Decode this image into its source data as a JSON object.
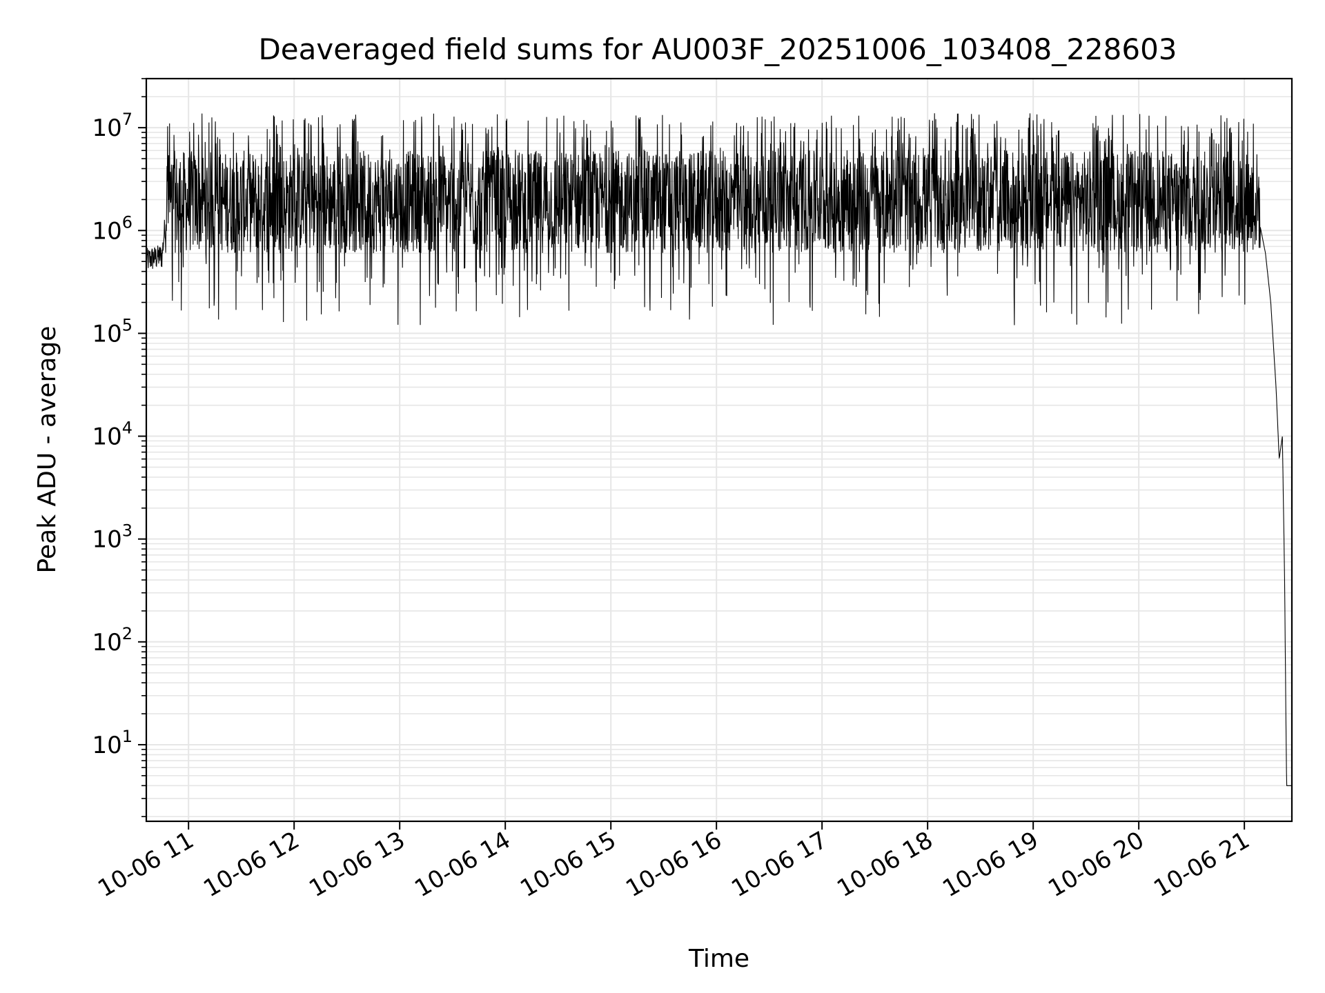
{
  "chart_data": {
    "type": "line",
    "title": "Deaveraged field sums for AU003F_20251006_103408_228603",
    "xlabel": "Time",
    "ylabel": "Peak ADU - average",
    "yscale": "log",
    "ylim": [
      1.8,
      30000000
    ],
    "xlim_hours": [
      10.6,
      21.45
    ],
    "grid": true,
    "grid_which": "both",
    "line_color": "#000000",
    "grid_color": "#e6e6e6",
    "x_ticks": [
      {
        "hour": 11,
        "label": "10-06 11"
      },
      {
        "hour": 12,
        "label": "10-06 12"
      },
      {
        "hour": 13,
        "label": "10-06 13"
      },
      {
        "hour": 14,
        "label": "10-06 14"
      },
      {
        "hour": 15,
        "label": "10-06 15"
      },
      {
        "hour": 16,
        "label": "10-06 16"
      },
      {
        "hour": 17,
        "label": "10-06 17"
      },
      {
        "hour": 18,
        "label": "10-06 18"
      },
      {
        "hour": 19,
        "label": "10-06 19"
      },
      {
        "hour": 20,
        "label": "10-06 20"
      },
      {
        "hour": 21,
        "label": "10-06 21"
      }
    ],
    "y_ticks": [
      {
        "value": 10,
        "base": "10",
        "exp": "1"
      },
      {
        "value": 100,
        "base": "10",
        "exp": "2"
      },
      {
        "value": 1000,
        "base": "10",
        "exp": "3"
      },
      {
        "value": 10000,
        "base": "10",
        "exp": "4"
      },
      {
        "value": 100000,
        "base": "10",
        "exp": "5"
      },
      {
        "value": 1000000,
        "base": "10",
        "exp": "6"
      },
      {
        "value": 10000000,
        "base": "10",
        "exp": "7"
      }
    ],
    "series": [
      {
        "name": "Peak ADU - average",
        "description_points": [
          {
            "hour": 10.6,
            "value": 500000
          },
          {
            "hour": 10.75,
            "value": 550000
          },
          {
            "hour": 10.8,
            "value": 2000000
          },
          {
            "hour": 11.0,
            "value": 2000000
          },
          {
            "hour": 14.0,
            "value": 2000000
          },
          {
            "hour": 14.3,
            "value": 1300000
          },
          {
            "hour": 16.0,
            "value": 1800000
          },
          {
            "hour": 20.0,
            "value": 2000000
          },
          {
            "hour": 21.1,
            "value": 2000000
          },
          {
            "hour": 21.2,
            "value": 600000
          },
          {
            "hour": 21.25,
            "value": 200000
          },
          {
            "hour": 21.3,
            "value": 30000
          },
          {
            "hour": 21.33,
            "value": 6000
          },
          {
            "hour": 21.36,
            "value": 10000
          },
          {
            "hour": 21.38,
            "value": 500
          },
          {
            "hour": 21.4,
            "value": 4
          },
          {
            "hour": 21.45,
            "value": 4
          }
        ],
        "band_upper": 6000000,
        "band_lower": 600000,
        "spike_max": 14000000,
        "dip_min": 70000
      }
    ]
  }
}
